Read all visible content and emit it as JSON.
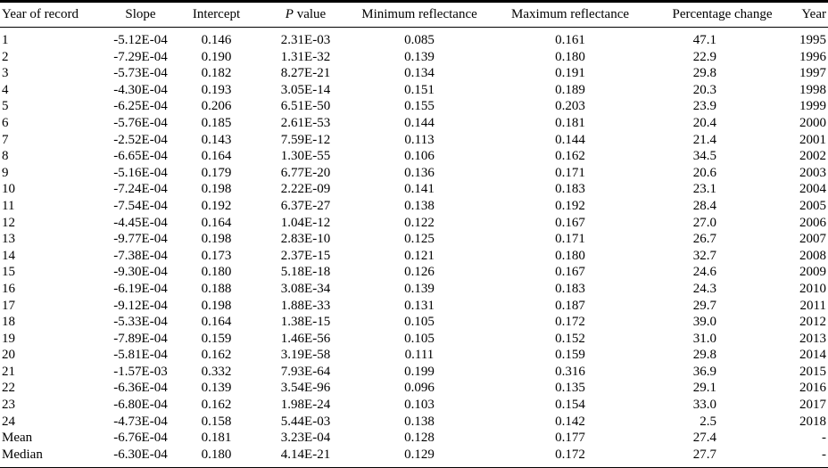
{
  "colors": {
    "text": "#000000",
    "background": "#ffffff",
    "rule": "#000000"
  },
  "table": {
    "columns": [
      {
        "id": "year_of_record",
        "label": "Year of record"
      },
      {
        "id": "slope",
        "label": "Slope"
      },
      {
        "id": "intercept",
        "label": "Intercept"
      },
      {
        "id": "p_value",
        "label": "P value",
        "label_italic": "P",
        "label_rest": " value"
      },
      {
        "id": "min_reflectance",
        "label": "Minimum reflectance"
      },
      {
        "id": "max_reflectance",
        "label": "Maximum reflectance"
      },
      {
        "id": "percentage_change",
        "label": "Percentage change"
      },
      {
        "id": "year",
        "label": "Year"
      }
    ],
    "rows": [
      [
        "1",
        "-5.12E-04",
        "0.146",
        "2.31E-03",
        "0.085",
        "0.161",
        "47.1",
        "1995"
      ],
      [
        "2",
        "-7.29E-04",
        "0.190",
        "1.31E-32",
        "0.139",
        "0.180",
        "22.9",
        "1996"
      ],
      [
        "3",
        "-5.73E-04",
        "0.182",
        "8.27E-21",
        "0.134",
        "0.191",
        "29.8",
        "1997"
      ],
      [
        "4",
        "-4.30E-04",
        "0.193",
        "3.05E-14",
        "0.151",
        "0.189",
        "20.3",
        "1998"
      ],
      [
        "5",
        "-6.25E-04",
        "0.206",
        "6.51E-50",
        "0.155",
        "0.203",
        "23.9",
        "1999"
      ],
      [
        "6",
        "-5.76E-04",
        "0.185",
        "2.61E-53",
        "0.144",
        "0.181",
        "20.4",
        "2000"
      ],
      [
        "7",
        "-2.52E-04",
        "0.143",
        "7.59E-12",
        "0.113",
        "0.144",
        "21.4",
        "2001"
      ],
      [
        "8",
        "-6.65E-04",
        "0.164",
        "1.30E-55",
        "0.106",
        "0.162",
        "34.5",
        "2002"
      ],
      [
        "9",
        "-5.16E-04",
        "0.179",
        "6.77E-20",
        "0.136",
        "0.171",
        "20.6",
        "2003"
      ],
      [
        "10",
        "-7.24E-04",
        "0.198",
        "2.22E-09",
        "0.141",
        "0.183",
        "23.1",
        "2004"
      ],
      [
        "11",
        "-7.54E-04",
        "0.192",
        "6.37E-27",
        "0.138",
        "0.192",
        "28.4",
        "2005"
      ],
      [
        "12",
        "-4.45E-04",
        "0.164",
        "1.04E-12",
        "0.122",
        "0.167",
        "27.0",
        "2006"
      ],
      [
        "13",
        "-9.77E-04",
        "0.198",
        "2.83E-10",
        "0.125",
        "0.171",
        "26.7",
        "2007"
      ],
      [
        "14",
        "-7.38E-04",
        "0.173",
        "2.37E-15",
        "0.121",
        "0.180",
        "32.7",
        "2008"
      ],
      [
        "15",
        "-9.30E-04",
        "0.180",
        "5.18E-18",
        "0.126",
        "0.167",
        "24.6",
        "2009"
      ],
      [
        "16",
        "-6.19E-04",
        "0.188",
        "3.08E-34",
        "0.139",
        "0.183",
        "24.3",
        "2010"
      ],
      [
        "17",
        "-9.12E-04",
        "0.198",
        "1.88E-33",
        "0.131",
        "0.187",
        "29.7",
        "2011"
      ],
      [
        "18",
        "-5.33E-04",
        "0.164",
        "1.38E-15",
        "0.105",
        "0.172",
        "39.0",
        "2012"
      ],
      [
        "19",
        "-7.89E-04",
        "0.159",
        "1.46E-56",
        "0.105",
        "0.152",
        "31.0",
        "2013"
      ],
      [
        "20",
        "-5.81E-04",
        "0.162",
        "3.19E-58",
        "0.111",
        "0.159",
        "29.8",
        "2014"
      ],
      [
        "21",
        "-1.57E-03",
        "0.332",
        "7.93E-64",
        "0.199",
        "0.316",
        "36.9",
        "2015"
      ],
      [
        "22",
        "-6.36E-04",
        "0.139",
        "3.54E-96",
        "0.096",
        "0.135",
        "29.1",
        "2016"
      ],
      [
        "23",
        "-6.80E-04",
        "0.162",
        "1.98E-24",
        "0.103",
        "0.154",
        "33.0",
        "2017"
      ],
      [
        "24",
        "-4.73E-04",
        "0.158",
        "5.44E-03",
        "0.138",
        "0.142",
        "2.5",
        "2018"
      ],
      [
        "Mean",
        "-6.76E-04",
        "0.181",
        "3.23E-04",
        "0.128",
        "0.177",
        "27.4",
        "-"
      ],
      [
        "Median",
        "-6.30E-04",
        "0.180",
        "4.14E-21",
        "0.129",
        "0.172",
        "27.7",
        "-"
      ]
    ]
  }
}
